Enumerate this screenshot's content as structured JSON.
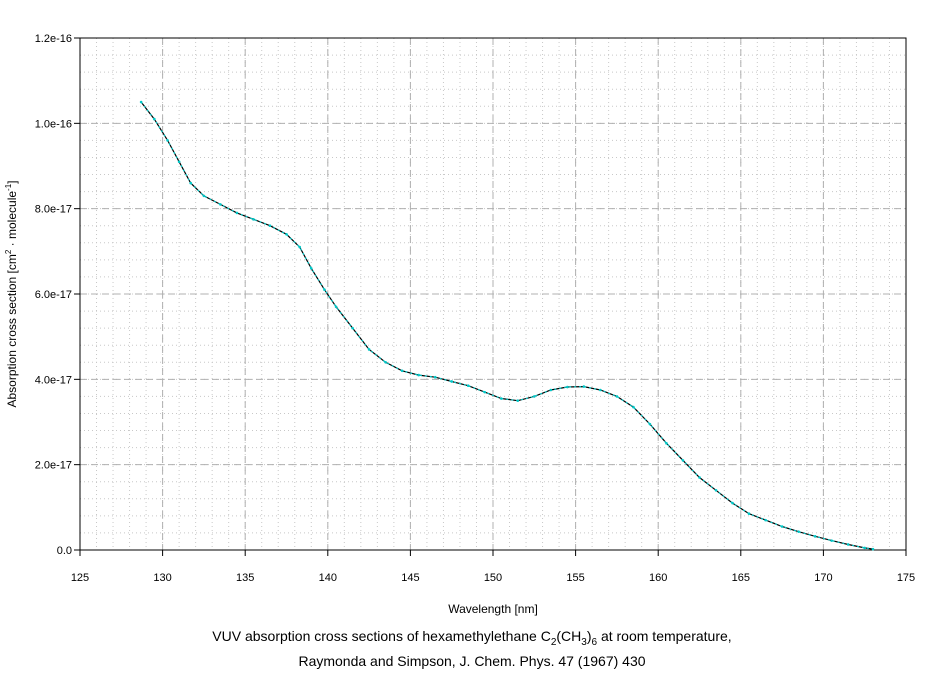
{
  "chart_data": {
    "type": "line",
    "xlabel": "Wavelength [nm]",
    "ylabel_parts": {
      "a": "Absorption cross section [cm",
      "sup1": "2",
      "b": " · molecule",
      "sup2": "-1",
      "c": "]"
    },
    "xlim": [
      125,
      175
    ],
    "ylim": [
      0,
      1.2e-16
    ],
    "xticks": [
      125,
      130,
      135,
      140,
      145,
      150,
      155,
      160,
      165,
      170,
      175
    ],
    "xtick_labels": [
      "125",
      "130",
      "135",
      "140",
      "145",
      "150",
      "155",
      "160",
      "165",
      "170",
      "175"
    ],
    "yticks": [
      0,
      2e-17,
      4e-17,
      6e-17,
      8e-17,
      1e-16,
      1.2e-16
    ],
    "ytick_labels": [
      "0.0",
      "2.0e-17",
      "4.0e-17",
      "6.0e-17",
      "8.0e-17",
      "1.0e-16",
      "1.2e-16"
    ],
    "grid": true,
    "line_color": "#000000",
    "marker_color": "#00c8c8",
    "series": [
      {
        "x": [
          128.7,
          129.5,
          130.3,
          131.0,
          131.7,
          132.5,
          133.5,
          134.5,
          135.5,
          136.5,
          137.5,
          138.3,
          139.0,
          139.8,
          140.5,
          141.5,
          142.5,
          143.5,
          144.5,
          145.5,
          146.5,
          147.5,
          148.5,
          149.5,
          150.5,
          151.5,
          152.5,
          153.5,
          154.5,
          155.5,
          156.5,
          157.5,
          158.5,
          159.5,
          160.5,
          161.5,
          162.5,
          163.5,
          164.5,
          165.5,
          166.5,
          167.5,
          168.5,
          169.5,
          170.5,
          171.5,
          172.5,
          173.0
        ],
        "y": [
          1.05e-16,
          1.01e-16,
          9.6e-17,
          9.1e-17,
          8.6e-17,
          8.3e-17,
          8.1e-17,
          7.9e-17,
          7.75e-17,
          7.6e-17,
          7.4e-17,
          7.1e-17,
          6.6e-17,
          6.1e-17,
          5.7e-17,
          5.2e-17,
          4.7e-17,
          4.4e-17,
          4.2e-17,
          4.1e-17,
          4.05e-17,
          3.95e-17,
          3.85e-17,
          3.7e-17,
          3.55e-17,
          3.5e-17,
          3.6e-17,
          3.75e-17,
          3.82e-17,
          3.83e-17,
          3.75e-17,
          3.6e-17,
          3.35e-17,
          2.95e-17,
          2.5e-17,
          2.1e-17,
          1.7e-17,
          1.4e-17,
          1.1e-17,
          8.5e-18,
          7e-18,
          5.5e-18,
          4.3e-18,
          3.2e-18,
          2.2e-18,
          1.3e-18,
          5e-19,
          2e-19
        ]
      }
    ],
    "caption": {
      "line1_a": "VUV absorption cross sections of hexamethylethane C",
      "sub1": "2",
      "line1_b": "(CH",
      "sub2": "3",
      "line1_c": ")",
      "sub3": "6",
      "line1_d": " at room temperature,",
      "line2": "Raymonda and Simpson, J. Chem. Phys. 47 (1967) 430"
    }
  }
}
